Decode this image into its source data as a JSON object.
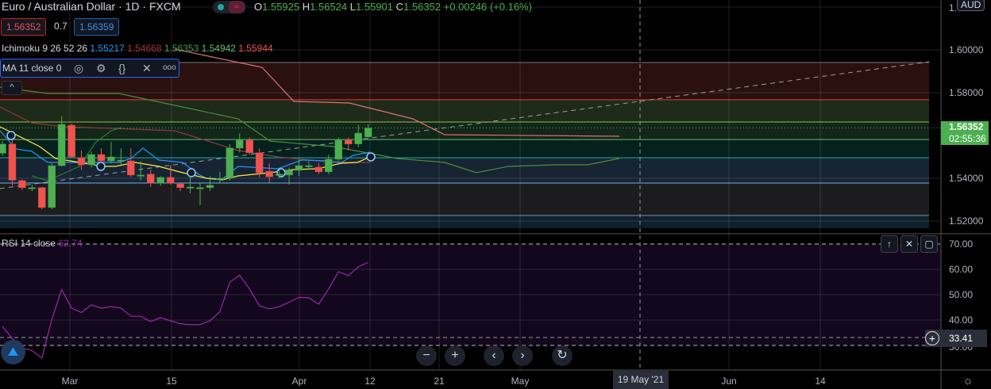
{
  "header": {
    "title": "Euro / Australian Dollar · 1D · FXCM",
    "ohlc": {
      "o_label": "O",
      "o": "1.55925",
      "h_label": "H",
      "h": "1.56524",
      "l_label": "L",
      "l": "1.55901",
      "c_label": "C",
      "c": "1.56352",
      "change": "+0.00246 (+0.16%)"
    }
  },
  "trade": {
    "sell_price": "1.56352",
    "spread": "0.7",
    "buy_price": "1.56359"
  },
  "indicators": {
    "ichimoku": {
      "name": "Ichimoku 9 26 52 26",
      "values": [
        {
          "v": "1.55217",
          "color": "#2196f3"
        },
        {
          "v": "1.54668",
          "color": "#a83232"
        },
        {
          "v": "1.56353",
          "color": "#43a047"
        },
        {
          "v": "1.54942",
          "color": "#66bb6a"
        },
        {
          "v": "1.55944",
          "color": "#ef5350"
        }
      ]
    },
    "ma": {
      "name": "MA 11 close 0",
      "icons": [
        "eye-icon",
        "gear-icon",
        "braces-icon",
        "close-icon",
        "more-icon"
      ]
    },
    "rsi": {
      "name": "RSI 14 close",
      "value": "62.74"
    }
  },
  "price_axis": {
    "currency": "AUD",
    "labels": [
      "1.",
      "1.60000",
      "1.58000",
      "1.54000",
      "1.52000"
    ],
    "current_price": "1.56352",
    "countdown": "02:55:36"
  },
  "rsi_axis": {
    "labels": [
      "70.00",
      "60.00",
      "50.00",
      "40.00",
      "30.00"
    ],
    "crosshair_value": "33.41"
  },
  "time_axis": {
    "labels": [
      {
        "t": "Mar"
      },
      {
        "t": "15"
      },
      {
        "t": "Apr"
      },
      {
        "t": "12"
      },
      {
        "t": "21"
      },
      {
        "t": "May"
      },
      {
        "t": "Jun"
      },
      {
        "t": "14"
      }
    ],
    "crosshair_date": "19 May '21"
  },
  "colors": {
    "up": "#4caf50",
    "down": "#ef5350",
    "rsi": "#9c27b0",
    "ma": "#ffeb3b",
    "tenkan": "#2196f3",
    "kijun": "#ef5350",
    "accent": "#2962ff"
  },
  "chart_data": {
    "type": "candlestick",
    "symbol": "EURAUD",
    "interval": "1D",
    "ylim": [
      1.516,
      1.604
    ],
    "candles_ohlc": [
      [
        1.5517,
        1.5575,
        1.5505,
        1.556
      ],
      [
        1.556,
        1.558,
        1.5365,
        1.5391
      ],
      [
        1.5389,
        1.5395,
        1.5345,
        1.5356
      ],
      [
        1.5356,
        1.537,
        1.534,
        1.5356
      ],
      [
        1.5356,
        1.536,
        1.5255,
        1.5263
      ],
      [
        1.5263,
        1.547,
        1.5255,
        1.5459
      ],
      [
        1.5459,
        1.569,
        1.5455,
        1.5652
      ],
      [
        1.5648,
        1.5655,
        1.5495,
        1.55
      ],
      [
        1.5496,
        1.553,
        1.544,
        1.5463
      ],
      [
        1.5463,
        1.5525,
        1.545,
        1.5511
      ],
      [
        1.5511,
        1.554,
        1.547,
        1.5481
      ],
      [
        1.5481,
        1.557,
        1.547,
        1.55
      ],
      [
        1.5485,
        1.554,
        1.5465,
        1.5485
      ],
      [
        1.5481,
        1.554,
        1.5405,
        1.5415
      ],
      [
        1.5415,
        1.548,
        1.539,
        1.5415
      ],
      [
        1.5419,
        1.544,
        1.536,
        1.5378
      ],
      [
        1.5378,
        1.541,
        1.5365,
        1.5404
      ],
      [
        1.5404,
        1.546,
        1.537,
        1.5378
      ],
      [
        1.5374,
        1.538,
        1.534,
        1.5356
      ],
      [
        1.5359,
        1.541,
        1.533,
        1.5359
      ],
      [
        1.5356,
        1.538,
        1.5275,
        1.5356
      ],
      [
        1.5356,
        1.541,
        1.534,
        1.5367
      ],
      [
        1.54,
        1.543,
        1.538,
        1.54
      ],
      [
        1.54,
        1.556,
        1.539,
        1.5541
      ],
      [
        1.5541,
        1.561,
        1.552,
        1.5578
      ],
      [
        1.5578,
        1.559,
        1.551,
        1.5519
      ],
      [
        1.5519,
        1.554,
        1.5405,
        1.5426
      ],
      [
        1.5433,
        1.547,
        1.538,
        1.5407
      ],
      [
        1.5419,
        1.544,
        1.54,
        1.5419
      ],
      [
        1.5415,
        1.545,
        1.537,
        1.5437
      ],
      [
        1.5437,
        1.549,
        1.541,
        1.5459
      ],
      [
        1.5459,
        1.548,
        1.544,
        1.5459
      ],
      [
        1.5452,
        1.547,
        1.542,
        1.543
      ],
      [
        1.543,
        1.551,
        1.542,
        1.5489
      ],
      [
        1.5489,
        1.559,
        1.548,
        1.5578
      ],
      [
        1.5578,
        1.559,
        1.553,
        1.556
      ],
      [
        1.556,
        1.565,
        1.5545,
        1.5611
      ],
      [
        1.5593,
        1.5652,
        1.559,
        1.5635
      ]
    ],
    "levels": [
      1.5941,
      1.5767,
      1.5663,
      1.5581,
      1.5496,
      1.5378,
      1.5226
    ],
    "rsi": {
      "ylim": [
        22,
        75
      ],
      "bands": [
        70,
        30
      ],
      "values": [
        37.5,
        32.8,
        29,
        28,
        25,
        40.3,
        52,
        44.7,
        43,
        46,
        44.7,
        45.3,
        44.7,
        41.5,
        41.5,
        39.4,
        41,
        39.7,
        38.6,
        38.2,
        38.2,
        39.7,
        43.3,
        54.9,
        57.7,
        52.3,
        45.6,
        44.4,
        45.3,
        47,
        49,
        48.8,
        46.3,
        52.3,
        59.1,
        57.5,
        61,
        62.74
      ]
    }
  }
}
